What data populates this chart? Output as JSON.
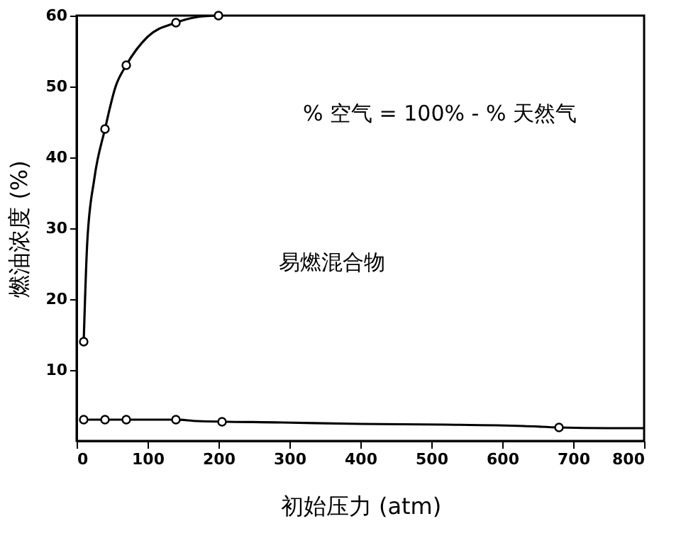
{
  "chart_data": {
    "type": "line",
    "xlabel": "初始压力 (atm)",
    "ylabel": "燃油浓度 (%)",
    "xlim": [
      0,
      800
    ],
    "xticks": [
      0,
      100,
      200,
      300,
      400,
      500,
      600,
      700,
      800
    ],
    "ylim": [
      0,
      60
    ],
    "yticks": [
      10,
      20,
      30,
      40,
      50,
      60
    ],
    "grid": false,
    "line_style": "solid",
    "annotations": [
      "% 空气 = 100% - %  天然气",
      "易燃混合物"
    ],
    "series": [
      {
        "color": "#000000",
        "marker": "none",
        "x": [
          10,
          15,
          25,
          40,
          55,
          70,
          100,
          140,
          170,
          200
        ],
        "values": [
          14,
          28,
          37,
          44,
          50,
          53,
          57,
          59,
          59.8,
          60
        ]
      },
      {
        "type": "scatter",
        "color": "#000000",
        "marker": "circle",
        "x": [
          10,
          40,
          70,
          140,
          200
        ],
        "values": [
          14,
          44,
          53,
          59,
          60
        ]
      },
      {
        "color": "#000000",
        "marker": "none",
        "x": [
          10,
          140,
          170,
          290,
          400,
          520,
          630,
          680,
          750,
          800
        ],
        "values": [
          3,
          3,
          2.8,
          2.6,
          2.4,
          2.3,
          2.1,
          1.9,
          1.8,
          1.8
        ]
      },
      {
        "type": "scatter",
        "color": "#000000",
        "marker": "circle",
        "x": [
          10,
          40,
          70,
          140,
          205,
          680
        ],
        "values": [
          3,
          3,
          3,
          3,
          2.7,
          1.9
        ]
      }
    ]
  }
}
